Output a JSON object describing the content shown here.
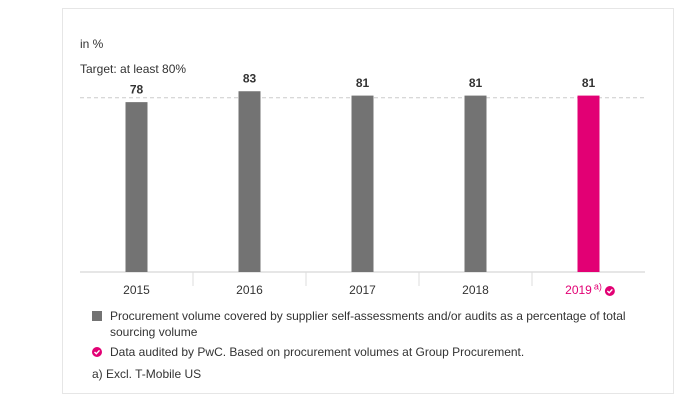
{
  "chart_data": {
    "type": "bar",
    "unit_label": "in %",
    "target": {
      "value": 80,
      "label": "Target: at least 80%"
    },
    "categories": [
      "2015",
      "2016",
      "2017",
      "2018",
      "2019"
    ],
    "category_notes": [
      null,
      null,
      null,
      null,
      "a)"
    ],
    "audited": [
      false,
      false,
      false,
      false,
      true
    ],
    "values": [
      78,
      83,
      81,
      81,
      81
    ],
    "colors": [
      "#737373",
      "#737373",
      "#737373",
      "#737373",
      "#e20074"
    ],
    "ylim": [
      0,
      90
    ],
    "legend": [
      {
        "text": "Procurement volume covered by supplier self-assessments and/or audits as a percentage of total sourcing volume",
        "color": "#737373",
        "marker": "square"
      },
      {
        "text": "Data audited by PwC. Based on procurement volumes at Group Procurement.",
        "color": "#e20074",
        "marker": "check"
      }
    ],
    "footnote": "a) Excl. T-Mobile US"
  }
}
